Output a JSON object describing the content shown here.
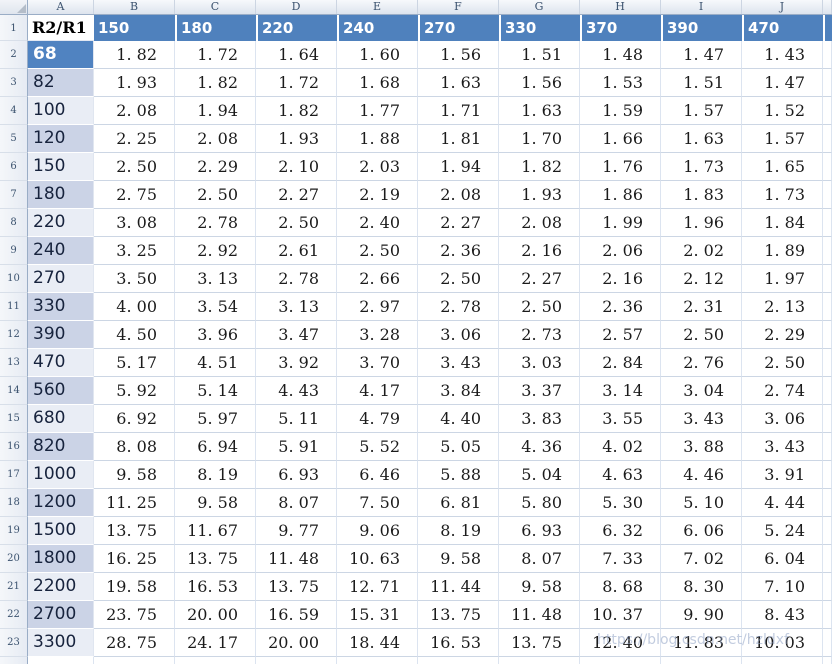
{
  "sheet": {
    "col_letters": [
      "A",
      "B",
      "C",
      "D",
      "E",
      "F",
      "G",
      "H",
      "I",
      "J"
    ],
    "header_row": {
      "n": "1",
      "a_label": "R2/R1",
      "values": [
        "150",
        "180",
        "220",
        "240",
        "270",
        "330",
        "370",
        "390",
        "470"
      ]
    },
    "rows": [
      {
        "n": "2",
        "label": "68",
        "band": "selected",
        "values": [
          "1. 82",
          "1. 72",
          "1. 64",
          "1. 60",
          "1. 56",
          "1. 51",
          "1. 48",
          "1. 47",
          "1. 43"
        ]
      },
      {
        "n": "3",
        "label": "82",
        "band": "dark",
        "values": [
          "1. 93",
          "1. 82",
          "1. 72",
          "1. 68",
          "1. 63",
          "1. 56",
          "1. 53",
          "1. 51",
          "1. 47"
        ]
      },
      {
        "n": "4",
        "label": "100",
        "band": "light",
        "values": [
          "2. 08",
          "1. 94",
          "1. 82",
          "1. 77",
          "1. 71",
          "1. 63",
          "1. 59",
          "1. 57",
          "1. 52"
        ]
      },
      {
        "n": "5",
        "label": "120",
        "band": "dark",
        "values": [
          "2. 25",
          "2. 08",
          "1. 93",
          "1. 88",
          "1. 81",
          "1. 70",
          "1. 66",
          "1. 63",
          "1. 57"
        ]
      },
      {
        "n": "6",
        "label": "150",
        "band": "light",
        "values": [
          "2. 50",
          "2. 29",
          "2. 10",
          "2. 03",
          "1. 94",
          "1. 82",
          "1. 76",
          "1. 73",
          "1. 65"
        ]
      },
      {
        "n": "7",
        "label": "180",
        "band": "dark",
        "values": [
          "2. 75",
          "2. 50",
          "2. 27",
          "2. 19",
          "2. 08",
          "1. 93",
          "1. 86",
          "1. 83",
          "1. 73"
        ]
      },
      {
        "n": "8",
        "label": "220",
        "band": "light",
        "values": [
          "3. 08",
          "2. 78",
          "2. 50",
          "2. 40",
          "2. 27",
          "2. 08",
          "1. 99",
          "1. 96",
          "1. 84"
        ]
      },
      {
        "n": "9",
        "label": "240",
        "band": "dark",
        "values": [
          "3. 25",
          "2. 92",
          "2. 61",
          "2. 50",
          "2. 36",
          "2. 16",
          "2. 06",
          "2. 02",
          "1. 89"
        ]
      },
      {
        "n": "10",
        "label": "270",
        "band": "light",
        "values": [
          "3. 50",
          "3. 13",
          "2. 78",
          "2. 66",
          "2. 50",
          "2. 27",
          "2. 16",
          "2. 12",
          "1. 97"
        ]
      },
      {
        "n": "11",
        "label": "330",
        "band": "dark",
        "values": [
          "4. 00",
          "3. 54",
          "3. 13",
          "2. 97",
          "2. 78",
          "2. 50",
          "2. 36",
          "2. 31",
          "2. 13"
        ]
      },
      {
        "n": "12",
        "label": "390",
        "band": "dark",
        "values": [
          "4. 50",
          "3. 96",
          "3. 47",
          "3. 28",
          "3. 06",
          "2. 73",
          "2. 57",
          "2. 50",
          "2. 29"
        ]
      },
      {
        "n": "13",
        "label": "470",
        "band": "light",
        "values": [
          "5. 17",
          "4. 51",
          "3. 92",
          "3. 70",
          "3. 43",
          "3. 03",
          "2. 84",
          "2. 76",
          "2. 50"
        ]
      },
      {
        "n": "14",
        "label": "560",
        "band": "dark",
        "values": [
          "5. 92",
          "5. 14",
          "4. 43",
          "4. 17",
          "3. 84",
          "3. 37",
          "3. 14",
          "3. 04",
          "2. 74"
        ]
      },
      {
        "n": "15",
        "label": "680",
        "band": "light",
        "values": [
          "6. 92",
          "5. 97",
          "5. 11",
          "4. 79",
          "4. 40",
          "3. 83",
          "3. 55",
          "3. 43",
          "3. 06"
        ]
      },
      {
        "n": "16",
        "label": "820",
        "band": "dark",
        "values": [
          "8. 08",
          "6. 94",
          "5. 91",
          "5. 52",
          "5. 05",
          "4. 36",
          "4. 02",
          "3. 88",
          "3. 43"
        ]
      },
      {
        "n": "17",
        "label": "1000",
        "band": "light",
        "values": [
          "9. 58",
          "8. 19",
          "6. 93",
          "6. 46",
          "5. 88",
          "5. 04",
          "4. 63",
          "4. 46",
          "3. 91"
        ]
      },
      {
        "n": "18",
        "label": "1200",
        "band": "dark",
        "values": [
          "11. 25",
          "9. 58",
          "8. 07",
          "7. 50",
          "6. 81",
          "5. 80",
          "5. 30",
          "5. 10",
          "4. 44"
        ]
      },
      {
        "n": "19",
        "label": "1500",
        "band": "light",
        "values": [
          "13. 75",
          "11. 67",
          "9. 77",
          "9. 06",
          "8. 19",
          "6. 93",
          "6. 32",
          "6. 06",
          "5. 24"
        ]
      },
      {
        "n": "20",
        "label": "1800",
        "band": "dark",
        "values": [
          "16. 25",
          "13. 75",
          "11. 48",
          "10. 63",
          "9. 58",
          "8. 07",
          "7. 33",
          "7. 02",
          "6. 04"
        ]
      },
      {
        "n": "21",
        "label": "2200",
        "band": "light",
        "values": [
          "19. 58",
          "16. 53",
          "13. 75",
          "12. 71",
          "11. 44",
          "9. 58",
          "8. 68",
          "8. 30",
          "7. 10"
        ]
      },
      {
        "n": "22",
        "label": "2700",
        "band": "dark",
        "values": [
          "23. 75",
          "20. 00",
          "16. 59",
          "15. 31",
          "13. 75",
          "11. 48",
          "10. 37",
          "9. 90",
          "8. 43"
        ]
      },
      {
        "n": "23",
        "label": "3300",
        "band": "light",
        "values": [
          "28. 75",
          "24. 17",
          "20. 00",
          "18. 44",
          "16. 53",
          "13. 75",
          "12. 40",
          "11. 83",
          "10. 03"
        ]
      }
    ],
    "watermark": "https://blog.csdn.net/hzldxf",
    "colors": {
      "header_blue": "#4f81bd",
      "selected_blue": "#5083c1",
      "band_dark": "#cbd3e6",
      "band_light": "#e9edf5",
      "grid_line": "#ccd6e4"
    }
  }
}
